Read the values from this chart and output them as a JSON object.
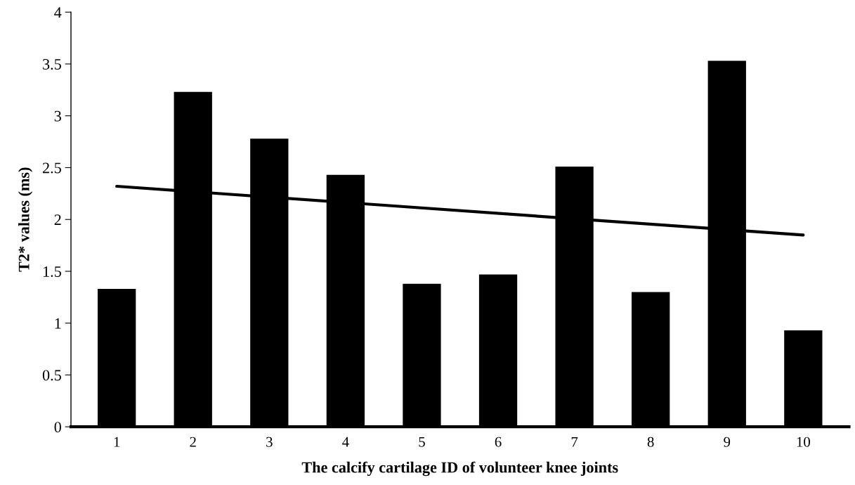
{
  "chart_data": {
    "type": "bar",
    "xlabel": "The calcify cartilage ID of volunteer knee joints",
    "ylabel": "T2* values (ms)",
    "categories": [
      "1",
      "2",
      "3",
      "4",
      "5",
      "6",
      "7",
      "8",
      "9",
      "10"
    ],
    "ylim": [
      0,
      4
    ],
    "yticks": [
      0,
      0.5,
      1,
      1.5,
      2,
      2.5,
      3,
      3.5,
      4
    ],
    "grid": false,
    "series": [
      {
        "color": "#000000",
        "values": [
          1.33,
          3.23,
          2.78,
          2.43,
          1.38,
          1.47,
          2.51,
          1.3,
          3.53,
          0.93
        ]
      },
      {
        "type": "line",
        "color": "#000000",
        "x": [
          "1",
          "10"
        ],
        "values": [
          2.32,
          1.85
        ],
        "line_style": "solid",
        "marker": "none"
      }
    ]
  }
}
